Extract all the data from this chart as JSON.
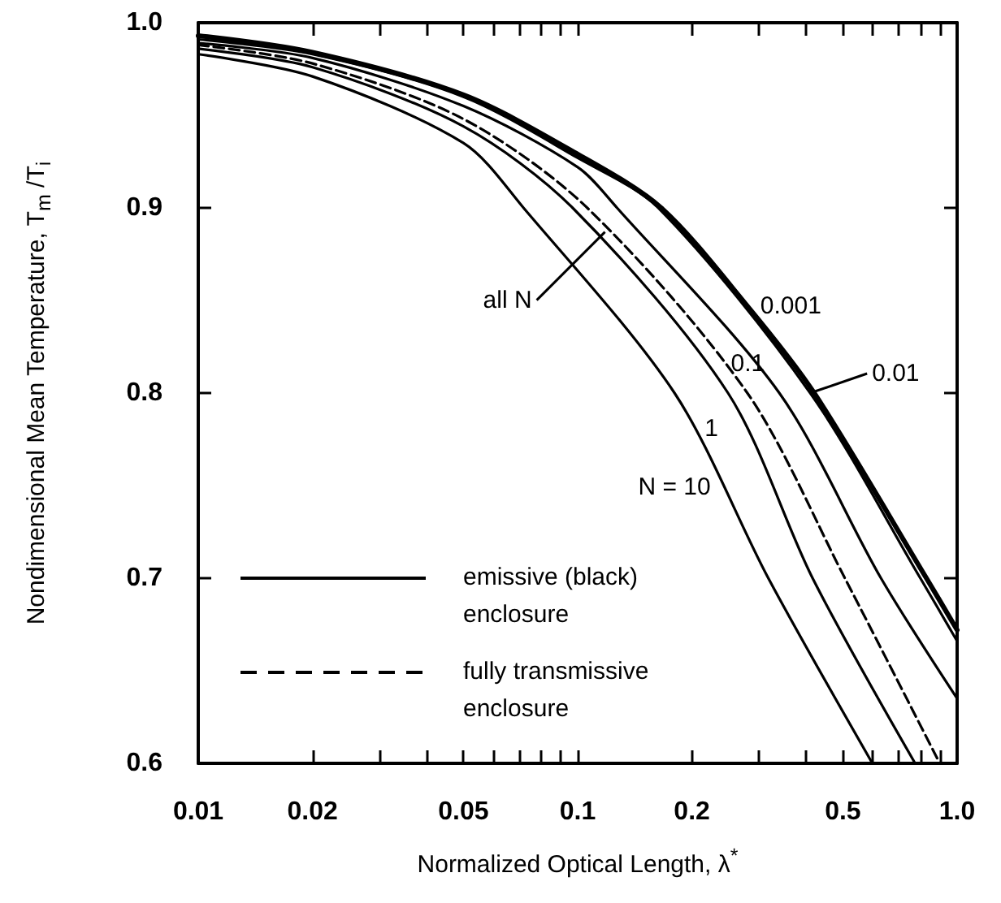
{
  "chart_data": {
    "type": "line",
    "xlabel": "Normalized Optical Length, λ$^{*}$",
    "ylabel": "Nondimensional Mean Temperature, T$_{m}$ /T$_{i}$",
    "log": "x",
    "xlim": [
      0.01,
      1
    ],
    "xticks": [
      0.01,
      0.02,
      {
        "value": 0.03,
        "label": null
      },
      {
        "value": 0.04,
        "label": null
      },
      0.05,
      {
        "value": 0.06,
        "label": null
      },
      {
        "value": 0.07,
        "label": null
      },
      {
        "value": 0.08,
        "label": null
      },
      {
        "value": 0.09,
        "label": null
      },
      0.1,
      0.2,
      {
        "value": 0.3,
        "label": null
      },
      {
        "value": 0.4,
        "label": null
      },
      0.5,
      {
        "value": 0.6,
        "label": null
      },
      {
        "value": 0.7,
        "label": null
      },
      {
        "value": 0.8,
        "label": null
      },
      {
        "value": 0.9,
        "label": null
      },
      {
        "value": 1,
        "label": "1.0"
      }
    ],
    "ylim": [
      0.6,
      1
    ],
    "yticks": [
      0.6,
      0.7,
      0.8,
      0.9,
      {
        "value": 1,
        "label": "1.0"
      }
    ],
    "series": [
      {
        "color": "#000000",
        "line_style": "solid",
        "x": [
          0.01,
          0.02,
          0.05,
          0.1,
          0.166,
          0.28,
          0.42,
          0.83,
          1
        ],
        "values": [
          0.993,
          0.984,
          0.961,
          0.929,
          0.9,
          0.847,
          0.8,
          0.7,
          0.672
        ]
      },
      {
        "color": "#000000",
        "line_style": "solid",
        "x": [
          0.01,
          0.02,
          0.05,
          0.1,
          0.163,
          0.41,
          0.8,
          1
        ],
        "values": [
          0.991,
          0.983,
          0.96,
          0.927,
          0.9,
          0.8,
          0.7,
          0.666
        ]
      },
      {
        "color": "#000000",
        "line_style": "solid",
        "x": [
          0.01,
          0.02,
          0.05,
          0.1,
          0.127,
          0.34,
          0.63,
          1
        ],
        "values": [
          0.989,
          0.981,
          0.955,
          0.922,
          0.9,
          0.8,
          0.7,
          0.635
        ]
      },
      {
        "color": "#000000",
        "line_style": "dashed",
        "x": [
          0.01,
          0.02,
          0.05,
          0.106,
          0.28,
          0.506,
          0.9
        ],
        "values": [
          0.988,
          0.978,
          0.948,
          0.9,
          0.8,
          0.7,
          0.6
        ]
      },
      {
        "color": "#000000",
        "line_style": "solid",
        "x": [
          0.01,
          0.02,
          0.05,
          0.097,
          0.249,
          0.416,
          0.775
        ],
        "values": [
          0.986,
          0.976,
          0.944,
          0.9,
          0.8,
          0.7,
          0.6
        ]
      },
      {
        "color": "#000000",
        "line_style": "solid",
        "x": [
          0.01,
          0.02,
          0.05,
          0.072,
          0.18,
          0.318,
          0.598
        ],
        "values": [
          0.983,
          0.971,
          0.935,
          0.9,
          0.8,
          0.7,
          0.6
        ]
      }
    ],
    "annotations": [
      {
        "text": "0.001",
        "x": 0.28,
        "y": 0.847
      },
      {
        "text": "0.01",
        "x": 0.41,
        "y": 0.8
      },
      {
        "text": "0.1",
        "x": 0.34,
        "y": 0.8
      },
      {
        "text": "1",
        "x": 0.249,
        "y": 0.8
      },
      {
        "text": "N = 10",
        "x": 0.245,
        "y": 0.749
      },
      {
        "text": "all N",
        "x": 0.118,
        "y": 0.887
      },
      "emissive (black) enclosure",
      "fully transmissive enclosure"
    ],
    "grid": false
  }
}
